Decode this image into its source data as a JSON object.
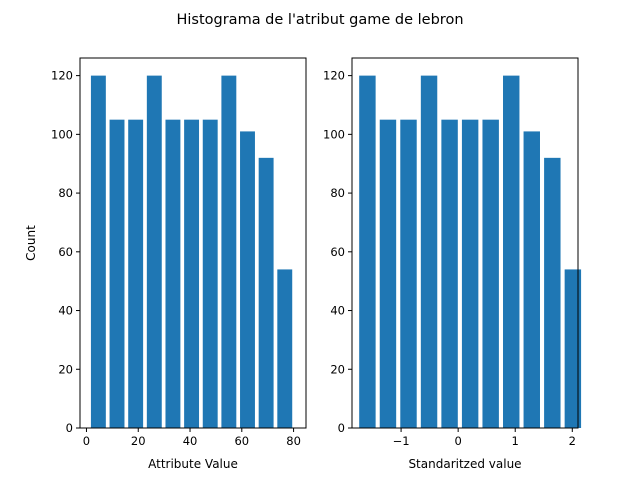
{
  "figure": {
    "title": "Histograma de l'atribut game de lebron",
    "bar_color": "#1f77b4",
    "background": "#ffffff"
  },
  "chart_data": [
    {
      "type": "bar",
      "xlabel": "Attribute Value",
      "ylabel": "Count",
      "xlim": [
        -2.5,
        84.8
      ],
      "ylim": [
        0,
        126
      ],
      "xticks": [
        0,
        20,
        40,
        60,
        80
      ],
      "xtick_labels": [
        "0",
        "20",
        "40",
        "60",
        "80"
      ],
      "yticks": [
        0,
        20,
        40,
        60,
        80,
        100,
        120
      ],
      "ytick_labels": [
        "0",
        "20",
        "40",
        "60",
        "80",
        "100",
        "120"
      ],
      "bin_edges": [
        1,
        8.2,
        15.4,
        22.6,
        29.8,
        37,
        44.2,
        51.4,
        58.6,
        65.8,
        73,
        80.2
      ],
      "bar_width_fraction": 0.8,
      "values": [
        120,
        105,
        105,
        120,
        105,
        105,
        105,
        120,
        101,
        92,
        54
      ]
    },
    {
      "type": "bar",
      "xlabel": "Standaritzed value",
      "ylabel": "",
      "xlim": [
        -1.86,
        2.1
      ],
      "ylim": [
        0,
        126
      ],
      "xticks": [
        -1,
        0,
        1,
        2
      ],
      "xtick_labels": [
        "−1",
        "0",
        "1",
        "2"
      ],
      "yticks": [
        0,
        20,
        40,
        60,
        80,
        100,
        120
      ],
      "ytick_labels": [
        "0",
        "20",
        "40",
        "60",
        "80",
        "100",
        "120"
      ],
      "bin_edges": [
        -1.77,
        -1.41,
        -1.05,
        -0.69,
        -0.33,
        0.03,
        0.39,
        0.75,
        1.11,
        1.47,
        1.83,
        2.19
      ],
      "bar_width_fraction": 0.8,
      "values": [
        120,
        105,
        105,
        120,
        105,
        105,
        105,
        120,
        101,
        92,
        54
      ]
    }
  ]
}
